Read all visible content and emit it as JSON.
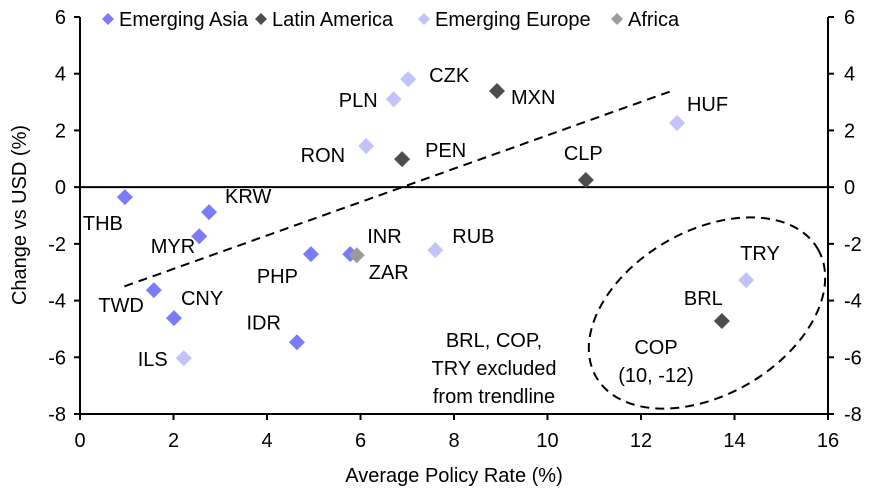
{
  "chart_data": {
    "type": "scatter",
    "title": "",
    "xlabel": "Average Policy Rate (%)",
    "ylabel": "Change vs USD (%)",
    "xlim": [
      0,
      16
    ],
    "ylim": [
      -8,
      6
    ],
    "x_ticks": [
      0,
      2,
      4,
      6,
      8,
      10,
      12,
      14,
      16
    ],
    "y_ticks": [
      6,
      4,
      2,
      0,
      -2,
      -4,
      -6,
      -8
    ],
    "y_ticks_right": [
      6,
      4,
      2,
      0,
      -2,
      -4,
      -6,
      -8
    ],
    "grid": false,
    "legend_position": "top",
    "series": [
      {
        "name": "Emerging Asia",
        "color": "#7b7bf7",
        "points": [
          {
            "label": "THB",
            "x": 0.96,
            "y": -0.35
          },
          {
            "label": "KRW",
            "x": 2.76,
            "y": -0.88
          },
          {
            "label": "MYR",
            "x": 2.55,
            "y": -1.73
          },
          {
            "label": "PHP",
            "x": 4.94,
            "y": -2.36
          },
          {
            "label": "INR",
            "x": 5.78,
            "y": -2.36
          },
          {
            "label": "TWD",
            "x": 1.58,
            "y": -3.63
          },
          {
            "label": "CNY",
            "x": 2.01,
            "y": -4.62
          },
          {
            "label": "IDR",
            "x": 4.64,
            "y": -5.47
          }
        ]
      },
      {
        "name": "Latin America",
        "color": "#4d4d4d",
        "points": [
          {
            "label": "MXN",
            "x": 8.92,
            "y": 3.39
          },
          {
            "label": "PEN",
            "x": 6.89,
            "y": 0.99
          },
          {
            "label": "CLP",
            "x": 10.82,
            "y": 0.25
          },
          {
            "label": "BRL",
            "x": 13.73,
            "y": -4.72
          }
        ]
      },
      {
        "name": "Emerging Europe",
        "color": "#c3c3fa",
        "points": [
          {
            "label": "CZK",
            "x": 7.02,
            "y": 3.81
          },
          {
            "label": "PLN",
            "x": 6.71,
            "y": 3.1
          },
          {
            "label": "RON",
            "x": 6.12,
            "y": 1.45
          },
          {
            "label": "HUF",
            "x": 12.77,
            "y": 2.26
          },
          {
            "label": "RUB",
            "x": 7.6,
            "y": -2.22
          },
          {
            "label": "ILS",
            "x": 2.22,
            "y": -6.03
          },
          {
            "label": "TRY",
            "x": 14.25,
            "y": -3.28
          }
        ]
      },
      {
        "name": "Africa",
        "color": "#9b9b9b",
        "points": [
          {
            "label": "ZAR",
            "x": 5.92,
            "y": -2.4
          }
        ]
      }
    ],
    "trendline": {
      "style": "dashed",
      "x_start": 0.95,
      "y_start": -3.5,
      "x_end": 12.67,
      "y_end": 3.4
    },
    "annotations": [
      {
        "id": "cop",
        "lines": [
          "COP",
          "(10, -12)"
        ]
      },
      {
        "id": "excluded",
        "lines": [
          "BRL, COP,",
          "TRY  excluded",
          "from trendline"
        ]
      }
    ],
    "highlight_ellipse": {
      "style": "dashed",
      "encloses": [
        "TRY",
        "BRL",
        "COP"
      ]
    }
  }
}
